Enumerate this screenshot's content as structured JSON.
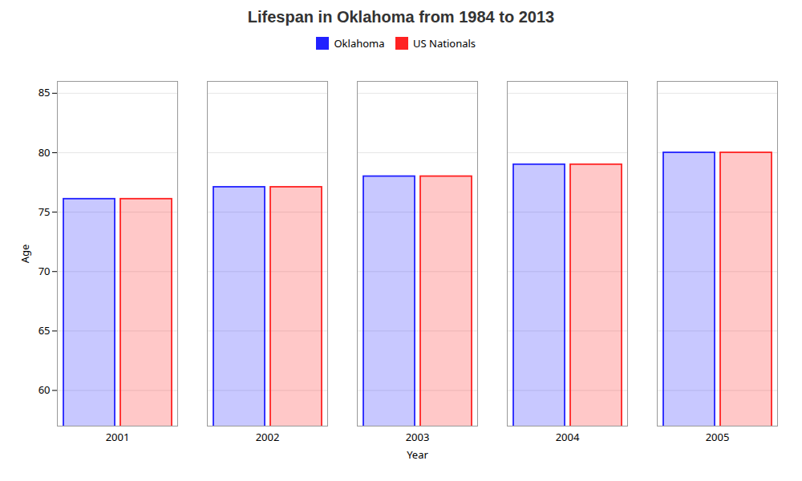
{
  "chart_data": {
    "type": "bar",
    "title": "Lifespan in Oklahoma from 1984 to 2013",
    "xlabel": "Year",
    "ylabel": "Age",
    "categories": [
      "2001",
      "2002",
      "2003",
      "2004",
      "2005"
    ],
    "series": [
      {
        "name": "Oklahoma",
        "color": "#2222FF",
        "values": [
          76.1,
          77.1,
          78.0,
          79.0,
          80.0
        ]
      },
      {
        "name": "US Nationals",
        "color": "#FF2222",
        "values": [
          76.1,
          77.1,
          78.0,
          79.0,
          80.0
        ]
      }
    ],
    "ylim": [
      57,
      86
    ],
    "yticks": [
      60,
      65,
      70,
      75,
      80,
      85
    ],
    "grid": true,
    "legend": "top"
  }
}
